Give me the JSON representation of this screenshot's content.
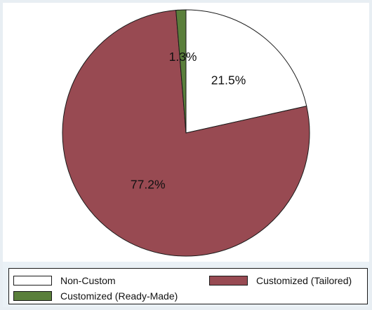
{
  "chart_data": {
    "type": "pie",
    "title": "",
    "categories": [
      "Non-Custom",
      "Customized (Tailored)",
      "Customized (Ready-Made)"
    ],
    "values": [
      21.5,
      77.2,
      1.3
    ],
    "value_labels": [
      "21.5%",
      "77.2%",
      "1.3%"
    ],
    "colors": [
      "#ffffff",
      "#984a52",
      "#5a7f3b"
    ],
    "start": "12 o'clock",
    "direction": "clockwise",
    "legend_position": "bottom"
  },
  "legend": {
    "items": [
      {
        "label": "Non-Custom",
        "color": "#ffffff"
      },
      {
        "label": "Customized (Tailored)",
        "color": "#984a52"
      },
      {
        "label": "Customized (Ready-Made)",
        "color": "#5a7f3b"
      }
    ]
  }
}
